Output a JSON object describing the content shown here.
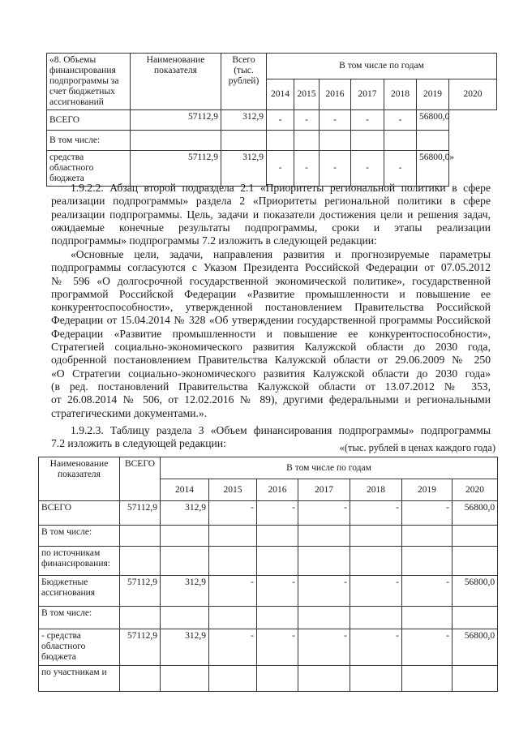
{
  "table1": {
    "label": "«8. Объемы финансирования подпрограммы за счет бюджетных ассигнований",
    "col_name": "Наименование показателя",
    "col_total": "Всего (тыс. рублей)",
    "col_years_group": "В том числе по годам",
    "years": [
      "2014",
      "2015",
      "2016",
      "2017",
      "2018",
      "2019",
      "2020"
    ],
    "rows": [
      {
        "name": "ВСЕГО",
        "total": "57112,9",
        "values": [
          "312,9",
          "-",
          "-",
          "-",
          "-",
          "-",
          "56800,0"
        ]
      },
      {
        "name": "В том числе:",
        "total": "",
        "values": [
          "",
          "",
          "",
          "",
          "",
          "",
          ""
        ]
      },
      {
        "name": "средства областного бюджета",
        "total": "57112,9",
        "values": [
          "312,9",
          "-",
          "-",
          "-",
          "-",
          "-",
          "56800,0»"
        ]
      }
    ]
  },
  "paragraphs": [
    {
      "lines": [
        "1.9.2.2. Абзац второй подраздела 2.1 «Приоритеты региональной политики в сфере",
        "реализации подпрограммы» раздела 2 «Приоритеты региональной политики в сфере",
        "реализации подпрограммы. Цель, задачи и показатели достижения цели и решения задач,",
        "ожидаемые конечные результаты подпрограммы, сроки и этапы реализации",
        "подпрограммы» подпрограммы 7.2 изложить в следующей редакции:"
      ]
    },
    {
      "lines": [
        "«Основные цели, задачи, направления развития и прогнозируемые параметры",
        "подпрограммы согласуются с Указом Президента Российской Федерации от 07.05.2012",
        "№ 596 «О долгосрочной государственной экономической политике», государственной",
        "программой Российской Федерации «Развитие промышленности и повышение ее",
        "конкурентоспособности», утвержденной постановлением Правительства Российской",
        "Федерации от 15.04.2014 № 328 «Об утверждении государственной программы Российской",
        "Федерации «Развитие промышленности и повышение ее конкурентоспособности»,",
        "Стратегией социально-экономического развития Калужской области до 2030 года,",
        "одобренной постановлением Правительства Калужской области от 29.06.2009 № 250",
        "«О Стратегии социально-экономического развития Калужской области до 2030 года»",
        "(в ред. постановлений Правительства Калужской области от 13.07.2012 № 353,",
        "от 26.08.2014 № 506, от 12.02.2016 № 89), другими федеральными и региональными",
        "стратегическими документами.»."
      ]
    },
    {
      "lines": [
        "1.9.2.3. Таблицу раздела 3 «Объем финансирования подпрограммы» подпрограммы",
        "7.2 изложить в следующей редакции:"
      ]
    }
  ],
  "table2": {
    "unit_note": "«(тыс. рублей в ценах каждого года)",
    "col_name": "Наименование показателя",
    "col_total": "ВСЕГО",
    "col_years_group": "В том числе по годам",
    "years": [
      "2014",
      "2015",
      "2016",
      "2017",
      "2018",
      "2019",
      "2020"
    ],
    "rows": [
      {
        "name": "ВСЕГО",
        "total": "57112,9",
        "values": [
          "312,9",
          "-",
          "-",
          "-",
          "-",
          "-",
          "56800,0"
        ]
      },
      {
        "name": "В том числе:",
        "total": "",
        "values": [
          "",
          "",
          "",
          "",
          "",
          "",
          ""
        ]
      },
      {
        "name": "по источникам финансирования:",
        "total": "",
        "values": [
          "",
          "",
          "",
          "",
          "",
          "",
          ""
        ]
      },
      {
        "name": "Бюджетные ассигнования",
        "total": "57112,9",
        "values": [
          "312,9",
          "-",
          "-",
          "-",
          "-",
          "-",
          "56800,0"
        ]
      },
      {
        "name": "В том числе:",
        "total": "",
        "values": [
          "",
          "",
          "",
          "",
          "",
          "",
          ""
        ]
      },
      {
        "name": "- средства областного бюджета",
        "total": "57112,9",
        "values": [
          "312,9",
          "-",
          "-",
          "-",
          "-",
          "-",
          "56800,0"
        ]
      },
      {
        "name": "по участникам и",
        "total": "",
        "values": [
          "",
          "",
          "",
          "",
          "",
          "",
          ""
        ]
      }
    ]
  }
}
